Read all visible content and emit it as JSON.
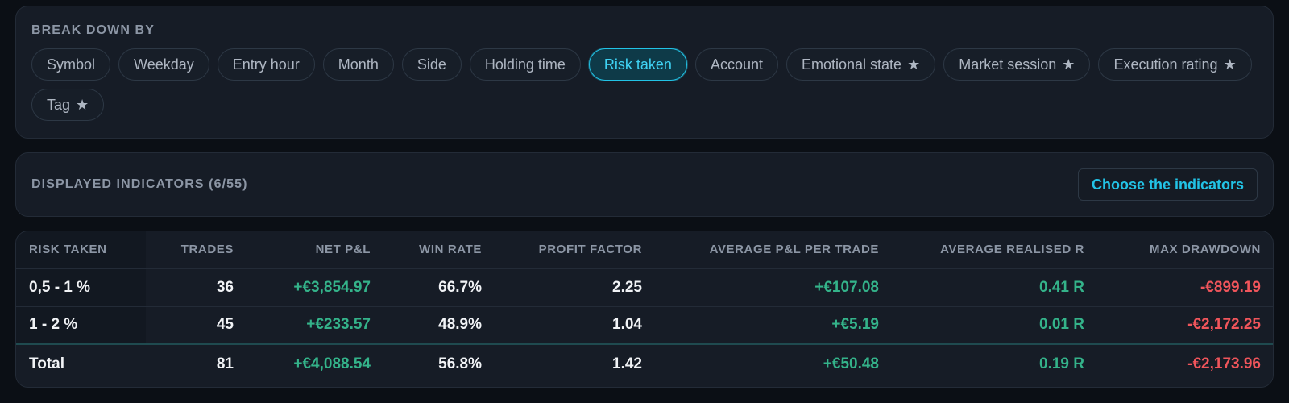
{
  "breakdown": {
    "title": "BREAK DOWN BY",
    "chips": [
      {
        "label": "Symbol",
        "star": "",
        "active": false
      },
      {
        "label": "Weekday",
        "star": "",
        "active": false
      },
      {
        "label": "Entry hour",
        "star": "",
        "active": false
      },
      {
        "label": "Month",
        "star": "",
        "active": false
      },
      {
        "label": "Side",
        "star": "",
        "active": false
      },
      {
        "label": "Holding time",
        "star": "",
        "active": false
      },
      {
        "label": "Risk taken",
        "star": "",
        "active": true
      },
      {
        "label": "Account",
        "star": "",
        "active": false
      },
      {
        "label": "Emotional state",
        "star": "★",
        "active": false
      },
      {
        "label": "Market session",
        "star": "★",
        "active": false
      },
      {
        "label": "Execution rating",
        "star": "★",
        "active": false
      },
      {
        "label": "Tag",
        "star": "★",
        "active": false
      }
    ]
  },
  "indicators": {
    "title": "DISPLAYED INDICATORS (6/55)",
    "choose_label": "Choose the indicators"
  },
  "table": {
    "headers": [
      "RISK TAKEN",
      "TRADES",
      "NET P&L",
      "WIN RATE",
      "PROFIT FACTOR",
      "AVERAGE P&L PER TRADE",
      "AVERAGE REALISED R",
      "MAX DRAWDOWN"
    ],
    "rows": [
      [
        "0,5 - 1 %",
        "36",
        "+€3,854.97",
        "66.7%",
        "2.25",
        "+€107.08",
        "0.41 R",
        "-€899.19"
      ],
      [
        "1 - 2 %",
        "45",
        "+€233.57",
        "48.9%",
        "1.04",
        "+€5.19",
        "0.01 R",
        "-€2,172.25"
      ]
    ],
    "total": [
      "Total",
      "81",
      "+€4,088.54",
      "56.8%",
      "1.42",
      "+€50.48",
      "0.19 R",
      "-€2,173.96"
    ]
  },
  "colors": {
    "accent": "#22c3e6",
    "positive": "#34b38a",
    "negative": "#f0555b",
    "background": "#0b0f15",
    "card": "#161c26"
  }
}
